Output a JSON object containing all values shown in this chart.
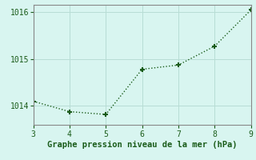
{
  "x": [
    3,
    4,
    5,
    6,
    7,
    8,
    9
  ],
  "y": [
    1014.1,
    1013.88,
    1013.82,
    1014.78,
    1014.87,
    1015.27,
    1016.04
  ],
  "line_color": "#1a5c1a",
  "marker_color": "#1a5c1a",
  "bg_color": "#d8f5f0",
  "grid_color": "#b8ddd5",
  "xlabel": "Graphe pression niveau de la mer (hPa)",
  "xlabel_color": "#1a5c1a",
  "tick_color": "#1a5c1a",
  "spine_color": "#888888",
  "xlim": [
    3,
    9
  ],
  "ylim": [
    1013.6,
    1016.15
  ],
  "yticks": [
    1014,
    1015,
    1016
  ],
  "xticks": [
    3,
    4,
    5,
    6,
    7,
    8,
    9
  ],
  "xlabel_fontsize": 7.5
}
